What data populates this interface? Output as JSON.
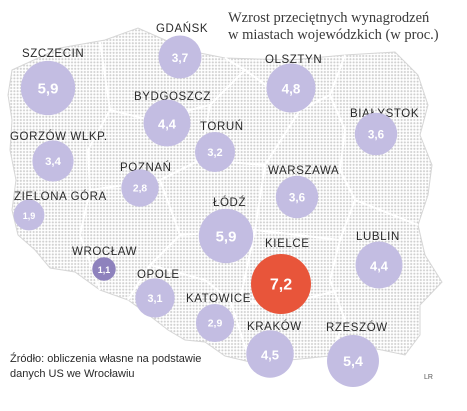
{
  "title_line1": "Wzrost przeciętnych wynagrodzeń",
  "title_line2": "w miastach wojewódzkich (w proc.)",
  "source_line1": "Źródło: obliczenia własne na podstawie",
  "source_line2": "danych US we Wrocławiu",
  "credit": "LR",
  "colors": {
    "bubble": "#c3bde2",
    "bubble_low": "#8e82bd",
    "highlight": "#e8553a",
    "map_dots": "#cfcfcf"
  },
  "chart_data": {
    "type": "bubble-map",
    "title": "Wzrost przeciętnych wynagrodzeń w miastach wojewódzkich (w proc.)",
    "unit": "proc.",
    "categories": [
      "GDAŃSK",
      "SZCZECIN",
      "OLSZTYN",
      "BYDGOSZCZ",
      "BIAŁYSTOK",
      "GORZÓW WLKP.",
      "TORUŃ",
      "POZNAŃ",
      "WARSZAWA",
      "ZIELONA GÓRA",
      "ŁÓDŹ",
      "KIELCE",
      "LUBLIN",
      "WROCŁAW",
      "OPOLE",
      "KATOWICE",
      "KRAKÓW",
      "RZESZÓW"
    ],
    "values": [
      3.7,
      5.9,
      4.8,
      4.4,
      3.6,
      3.4,
      3.2,
      2.8,
      3.6,
      1.9,
      5.9,
      7.2,
      4.4,
      1.1,
      3.1,
      2.9,
      4.5,
      5.4
    ],
    "display_values": [
      "3,7",
      "5,9",
      "4,8",
      "4,4",
      "3,6",
      "3,4",
      "3,2",
      "2,8",
      "3,6",
      "1,9",
      "5,9",
      "7,2",
      "4,4",
      "1,1",
      "3,1",
      "2,9",
      "4,5",
      "5,4"
    ],
    "highlight": "KIELCE"
  }
}
